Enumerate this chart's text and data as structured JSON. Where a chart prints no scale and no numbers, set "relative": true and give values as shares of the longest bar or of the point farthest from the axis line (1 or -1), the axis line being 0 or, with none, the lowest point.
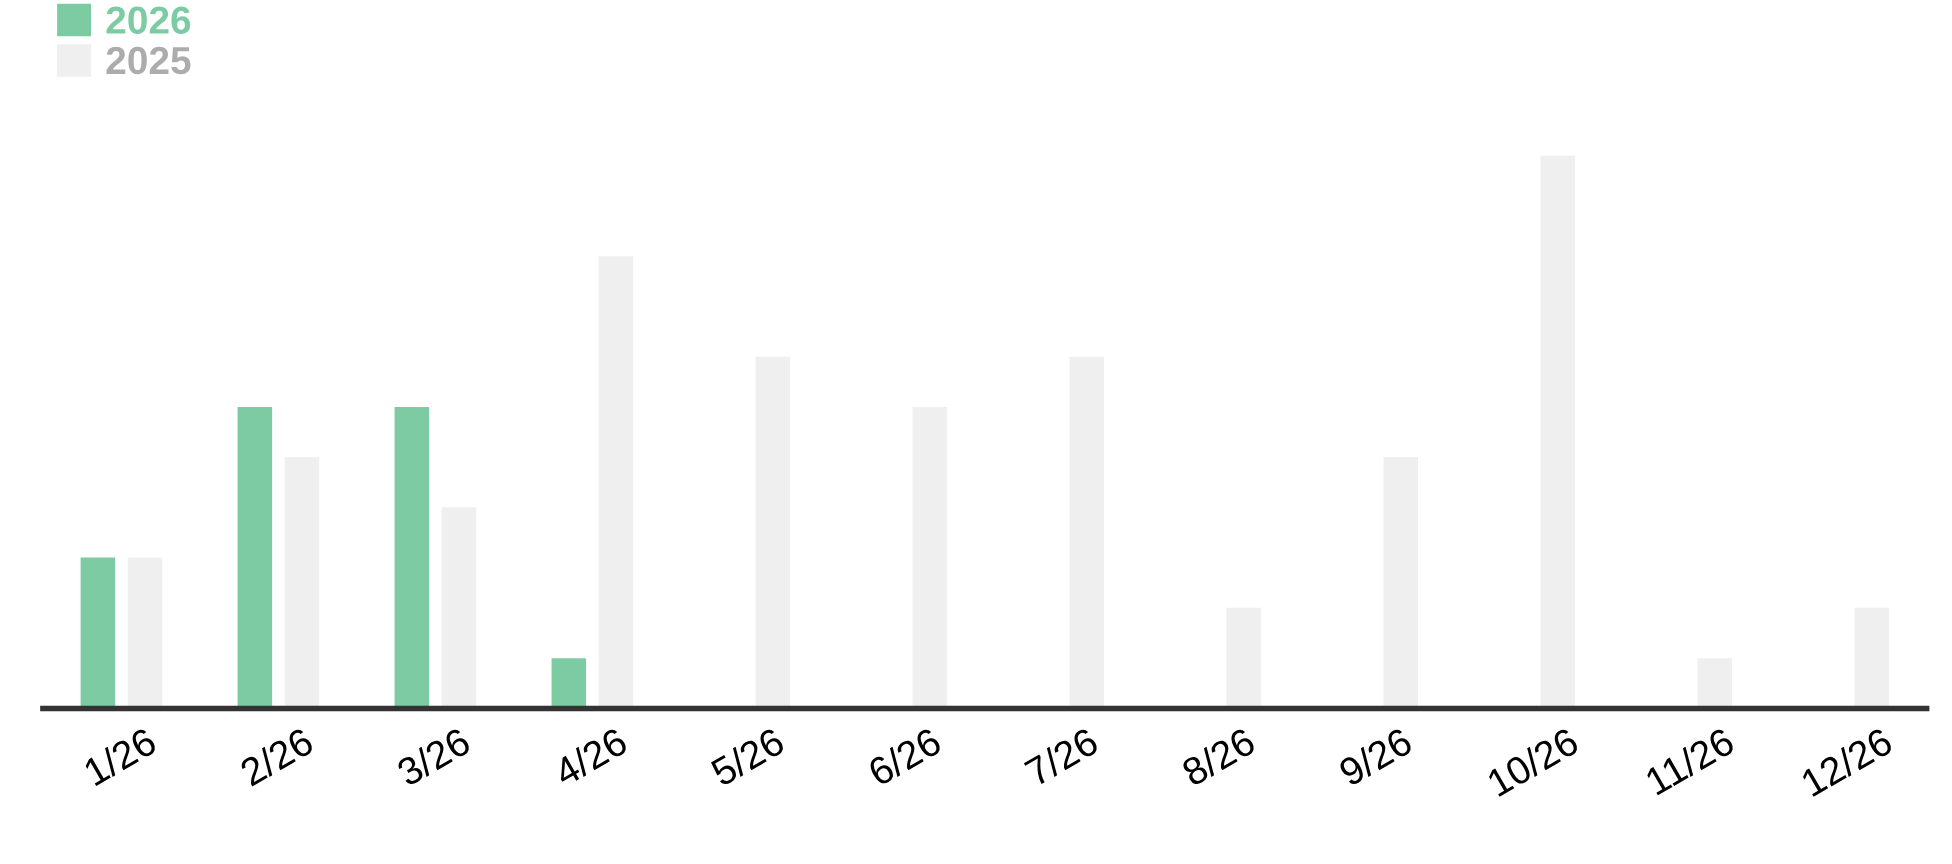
{
  "chart_data": {
    "type": "bar",
    "relative": true,
    "categories": [
      "1/26",
      "2/26",
      "3/26",
      "4/26",
      "5/26",
      "6/26",
      "7/26",
      "8/26",
      "9/26",
      "10/26",
      "11/26",
      "12/26"
    ],
    "series": [
      {
        "name": "2026",
        "color": "#7ccba2",
        "values": [
          0.273,
          0.545,
          0.545,
          0.091,
          null,
          null,
          null,
          null,
          null,
          null,
          null,
          null
        ]
      },
      {
        "name": "2025",
        "color": "#efefef",
        "values": [
          0.273,
          0.455,
          0.364,
          0.818,
          0.636,
          0.545,
          0.636,
          0.182,
          0.455,
          1,
          0.091,
          0.182
        ]
      }
    ],
    "legend": "top left",
    "grid": false
  }
}
